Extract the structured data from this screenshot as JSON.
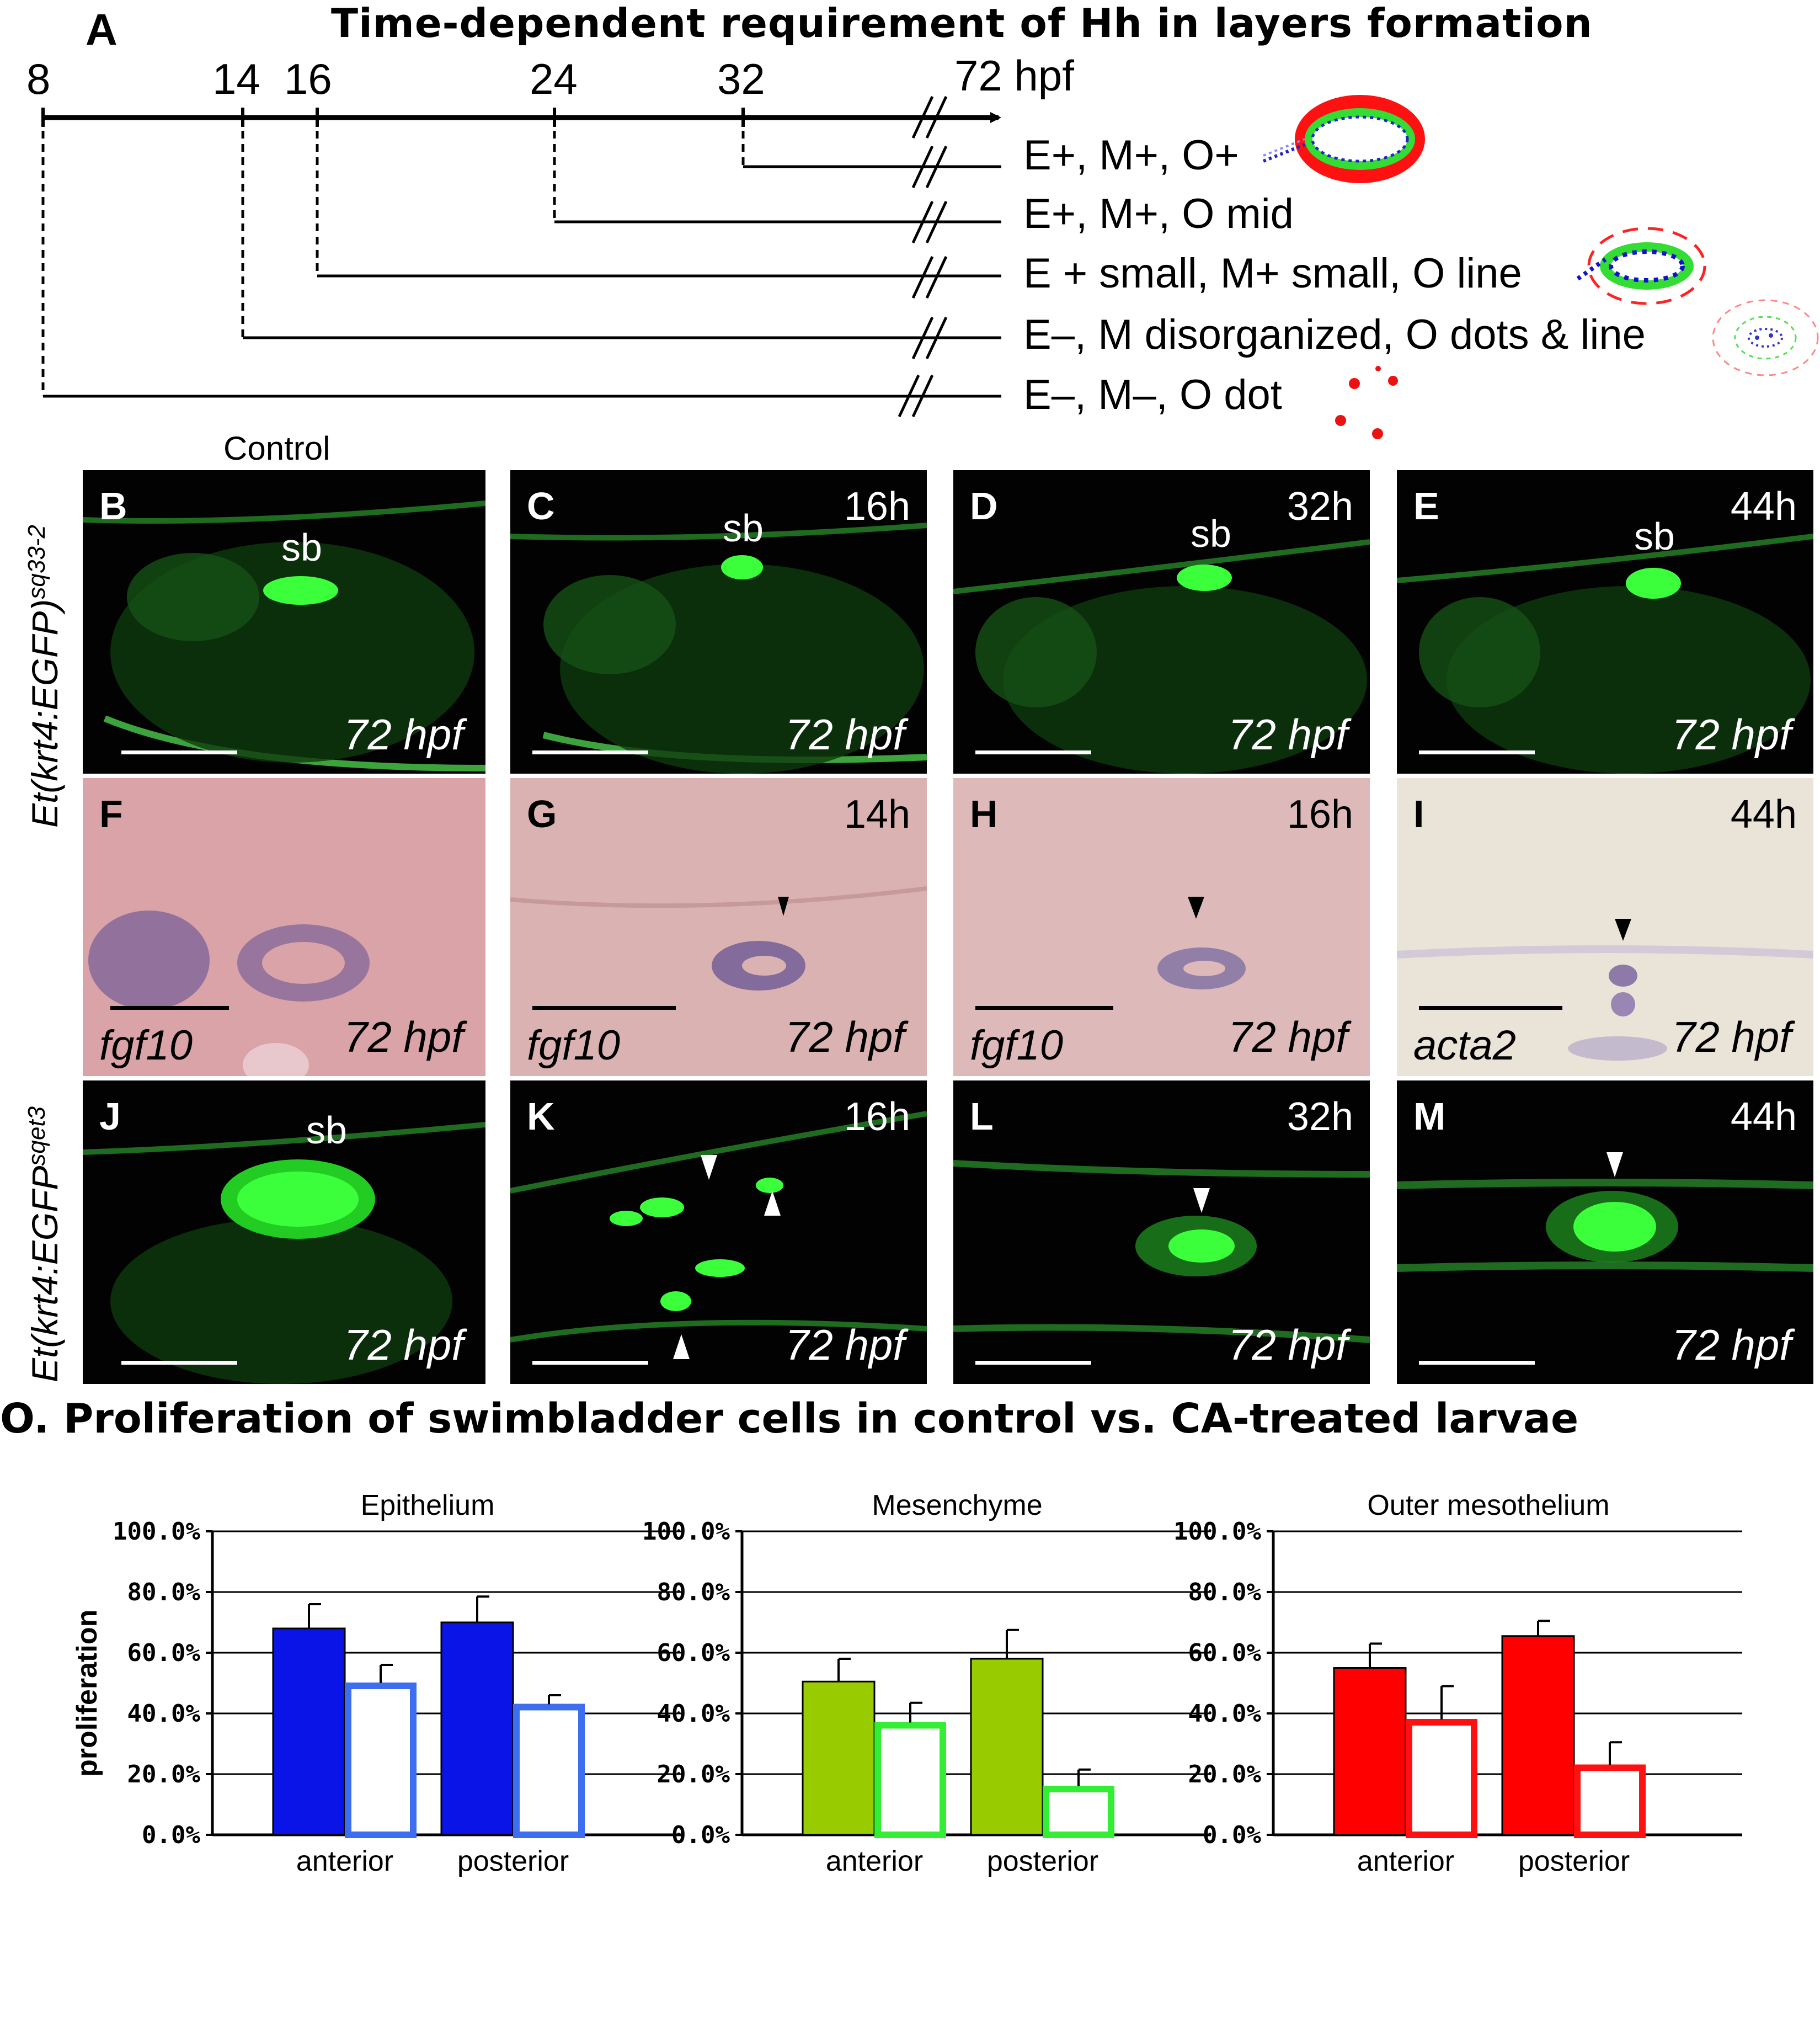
{
  "panel_a": {
    "letter": "A",
    "title": "Time-dependent requirement of Hh in layers formation",
    "ticks": [
      "8",
      "14",
      "16",
      "24",
      "32",
      "72 hpf"
    ],
    "conditions": [
      "E+, M+, O+",
      "E+, M+, O mid",
      "E + small, M+ small, O line",
      "E–, M disorganized, O dots & line",
      "E–, M–, O dot"
    ]
  },
  "row_labels": {
    "top_main": "Et(krt4:EGFP)",
    "top_sup": "sq33-2",
    "bottom_main": "Et(krt4:EGFP",
    "bottom_sup": "sqet3"
  },
  "control_label": "Control",
  "panels": {
    "B": {
      "letter": "B",
      "time": "",
      "sb": "sb",
      "hpf": "72 hpf"
    },
    "C": {
      "letter": "C",
      "time": "16h",
      "sb": "sb",
      "hpf": "72 hpf"
    },
    "D": {
      "letter": "D",
      "time": "32h",
      "sb": "sb",
      "hpf": "72 hpf"
    },
    "E": {
      "letter": "E",
      "time": "44h",
      "sb": "sb",
      "hpf": "72 hpf"
    },
    "F": {
      "letter": "F",
      "time": "",
      "gene": "fgf10",
      "hpf": "72 hpf"
    },
    "G": {
      "letter": "G",
      "time": "14h",
      "gene": "fgf10",
      "hpf": "72 hpf"
    },
    "H": {
      "letter": "H",
      "time": "16h",
      "gene": "fgf10",
      "hpf": "72 hpf"
    },
    "I": {
      "letter": "I",
      "time": "44h",
      "gene": "acta2",
      "hpf": "72 hpf"
    },
    "J": {
      "letter": "J",
      "time": "",
      "sb": "sb",
      "hpf": "72 hpf"
    },
    "K": {
      "letter": "K",
      "time": "16h",
      "hpf": "72 hpf"
    },
    "L": {
      "letter": "L",
      "time": "32h",
      "hpf": "72 hpf"
    },
    "M": {
      "letter": "M",
      "time": "44h",
      "hpf": "72 hpf"
    }
  },
  "panel_o_title": "O. Proliferation of swimbladder cells in control vs. CA-treated larvae",
  "chart_data": [
    {
      "type": "bar",
      "title": "Epithelium",
      "ylabel": "proliferation",
      "categories": [
        "anterior",
        "posterior"
      ],
      "ylim": [
        0,
        100
      ],
      "yticks": [
        "0.0%",
        "20.0%",
        "40.0%",
        "60.0%",
        "80.0%",
        "100.0%"
      ],
      "grid": true,
      "series": [
        {
          "values": [
            68,
            70
          ],
          "errors": [
            8,
            8.5
          ],
          "style": "filled",
          "color": "#0a14e6"
        },
        {
          "values": [
            50,
            43
          ],
          "errors": [
            6,
            3
          ],
          "style": "outline",
          "color": "#3d6ef0"
        }
      ]
    },
    {
      "type": "bar",
      "title": "Mesenchyme",
      "categories": [
        "anterior",
        "posterior"
      ],
      "ylim": [
        0,
        100
      ],
      "yticks": [
        "0.0%",
        "20.0%",
        "40.0%",
        "60.0%",
        "80.0%",
        "100.0%"
      ],
      "grid": true,
      "series": [
        {
          "values": [
            50.5,
            58
          ],
          "errors": [
            7.5,
            9.5
          ],
          "style": "filled",
          "color": "#99cc00"
        },
        {
          "values": [
            37,
            16
          ],
          "errors": [
            6.5,
            5.5
          ],
          "style": "outline",
          "color": "#33ee33"
        }
      ]
    },
    {
      "type": "bar",
      "title": "Outer mesothelium",
      "categories": [
        "anterior",
        "posterior"
      ],
      "ylim": [
        0,
        100
      ],
      "yticks": [
        "0.0%",
        "20.0%",
        "40.0%",
        "60.0%",
        "80.0%",
        "100.0%"
      ],
      "grid": true,
      "series": [
        {
          "values": [
            55,
            65.5
          ],
          "errors": [
            8,
            5
          ],
          "style": "filled",
          "color": "#ff0000"
        },
        {
          "values": [
            38,
            23
          ],
          "errors": [
            11,
            7.5
          ],
          "style": "outline",
          "color": "#ff1111"
        }
      ]
    }
  ]
}
